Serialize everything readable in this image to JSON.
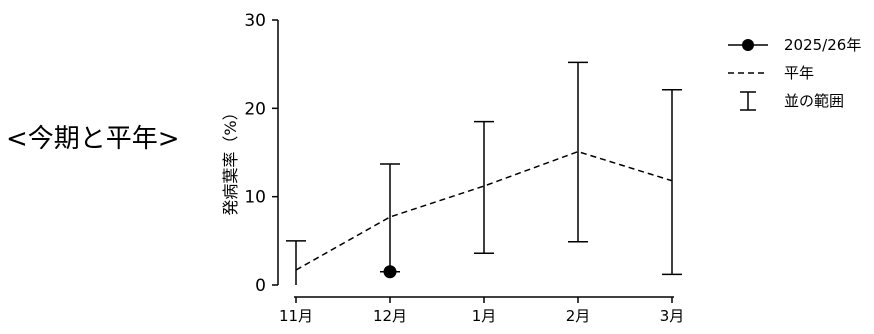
{
  "side_title": "<今期と平年>",
  "chart_data": {
    "type": "line",
    "ylabel": "発病葉率（%）",
    "xlabel": "",
    "ylim": [
      0,
      30
    ],
    "yticks": [
      0,
      10,
      20,
      30
    ],
    "categories": [
      "11月",
      "12月",
      "1月",
      "2月",
      "3月"
    ],
    "series": [
      {
        "name": "2025/26年",
        "style": "solid-marker",
        "values": [
          null,
          1.5,
          null,
          null,
          null
        ]
      },
      {
        "name": "平年",
        "style": "dashed",
        "values": [
          1.7,
          7.7,
          11.2,
          15.1,
          11.8
        ]
      },
      {
        "name": "並の範囲",
        "style": "errorbar",
        "low": [
          0.0,
          1.5,
          3.6,
          4.9,
          1.2
        ],
        "high": [
          5.0,
          13.7,
          18.5,
          25.2,
          22.1
        ]
      }
    ],
    "legend_position": "top-right",
    "grid": false
  }
}
